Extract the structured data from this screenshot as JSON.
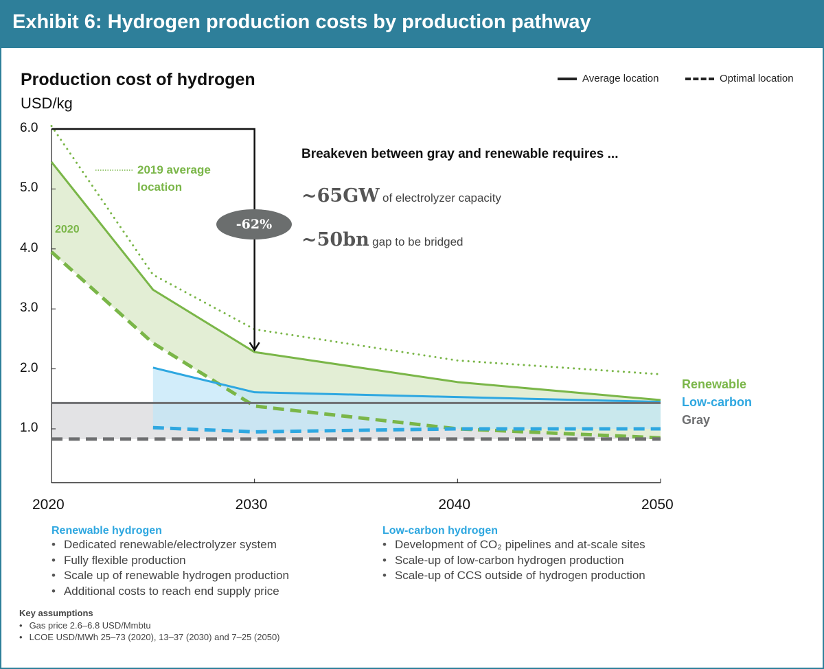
{
  "header": {
    "title": "Exhibit 6: Hydrogen production costs by production pathway"
  },
  "colors": {
    "header_bg": "#2e7f9a",
    "renewable": "#7ab648",
    "low_carbon": "#2ea7e0",
    "gray": "#6d6e70",
    "renewable_fill": "#e1edd3",
    "low_carbon_fill": "#bfe5f8",
    "gray_fill": "#e3e3e5",
    "callout_pill": "#6b6e6e"
  },
  "chart_data": {
    "type": "line",
    "title": "Production cost of hydrogen",
    "ylabel": "USD/kg",
    "xlabel": "",
    "xlim": [
      2020,
      2050
    ],
    "ylim": [
      0.1,
      6.0
    ],
    "x_ticks": [
      "2020",
      "2030",
      "2040",
      "2050"
    ],
    "y_ticks": [
      "1.0",
      "2.0",
      "3.0",
      "4.0",
      "5.0",
      "6.0"
    ],
    "grid": false,
    "legend": {
      "position": "top-right",
      "items": [
        "Average location",
        "Optimal location"
      ]
    },
    "series": [
      {
        "name": "Renewable",
        "style": "solid",
        "x": [
          2020,
          2025,
          2030,
          2040,
          2050
        ],
        "values": [
          5.45,
          3.32,
          2.28,
          1.78,
          1.48
        ]
      },
      {
        "name": "Renewable",
        "style": "dashed",
        "x": [
          2020,
          2025,
          2030,
          2040,
          2050
        ],
        "values": [
          3.95,
          2.43,
          1.38,
          1.0,
          0.85
        ]
      },
      {
        "name": "2019 average location",
        "style": "dotted",
        "x": [
          2020,
          2025,
          2030,
          2040,
          2050
        ],
        "values": [
          6.05,
          3.57,
          2.66,
          2.14,
          1.91
        ]
      },
      {
        "name": "Low-carbon",
        "style": "solid",
        "x": [
          2025,
          2030,
          2040,
          2050
        ],
        "values": [
          2.02,
          1.61,
          1.53,
          1.45
        ]
      },
      {
        "name": "Low-carbon",
        "style": "dashed",
        "x": [
          2025,
          2030,
          2040,
          2050
        ],
        "values": [
          1.02,
          0.95,
          1.0,
          1.0
        ]
      },
      {
        "name": "Gray",
        "style": "solid",
        "x": [
          2020,
          2050
        ],
        "values": [
          1.43,
          1.43
        ]
      },
      {
        "name": "Gray",
        "style": "dashed",
        "x": [
          2020,
          2050
        ],
        "values": [
          0.83,
          0.83
        ]
      }
    ],
    "annotations": {
      "dotted_label": "2019 average location",
      "band_label": "2020",
      "reduction": "-62%",
      "reduction_from": {
        "x": 2020,
        "y": 6.0
      },
      "reduction_to": {
        "x": 2030,
        "y": 2.28
      },
      "end_labels": [
        "Renewable",
        "Low-carbon",
        "Gray"
      ]
    }
  },
  "callout": {
    "heading": "Breakeven between gray and renewable requires ...",
    "items": [
      {
        "value": "~65GW",
        "text": "of electrolyzer capacity"
      },
      {
        "value": "~50bn",
        "text": "gap to be bridged"
      }
    ]
  },
  "notes": {
    "renewable": {
      "heading": "Renewable hydrogen",
      "bullets": [
        "Dedicated renewable/electrolyzer system",
        "Fully flexible production",
        "Scale up of renewable hydrogen production",
        "Additional costs to reach end supply price"
      ]
    },
    "low_carbon": {
      "heading": "Low-carbon hydrogen",
      "bullets": [
        "Development of CO₂ pipelines and at-scale sites",
        "Scale-up of low-carbon hydrogen production",
        "Scale-up of CCS outside of hydrogen production"
      ]
    },
    "key_assumptions": {
      "heading": "Key assumptions",
      "bullets": [
        "Gas price 2.6–6.8 USD/Mmbtu",
        "LCOE USD/MWh 25–73 (2020), 13–37 (2030) and 7–25 (2050)"
      ]
    }
  }
}
